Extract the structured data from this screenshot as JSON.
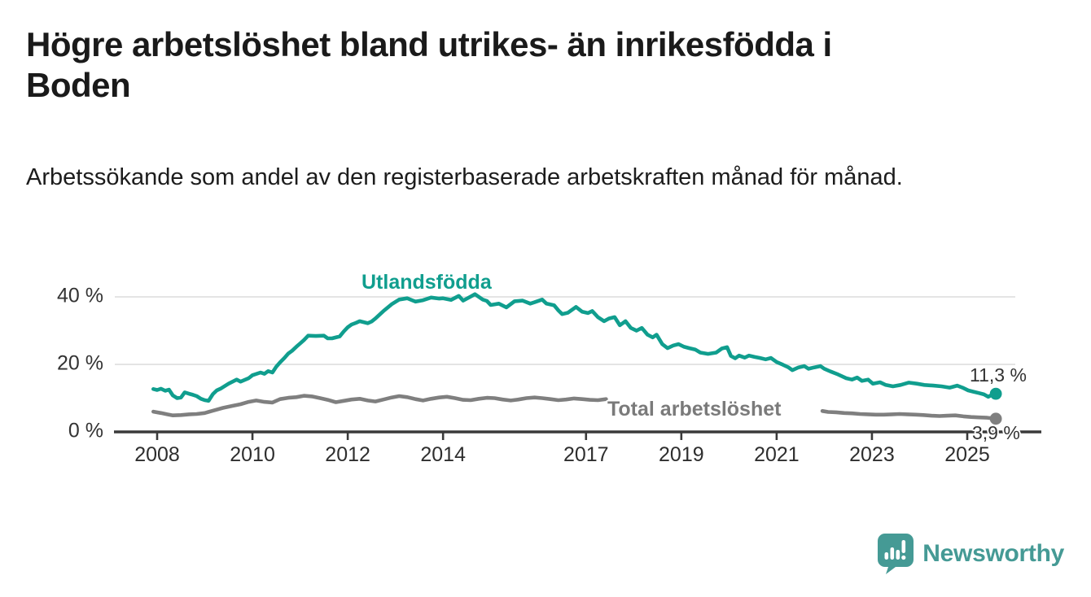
{
  "header": {
    "title_line1": "Högre arbetslöshet bland utrikes- än inrikesfödda i",
    "title_line2": "Boden",
    "subtitle": "Arbetssökande som andel av den registerbaserade arbetskraften månad för månad."
  },
  "footer": {
    "brand": "Newsworthy",
    "logo_icon": "speech-bubble-bar-chart",
    "logo_color": "#459a95"
  },
  "colors": {
    "foreign_series": "#109e8e",
    "total_series": "#7f7f7f",
    "axis": "#3a3a3a",
    "gridline": "#dcdcdc",
    "text": "#1a1a1a"
  },
  "chart_data": {
    "type": "line",
    "title": "Högre arbetslöshet bland utrikes- än inrikesfödda i Boden",
    "subtitle": "Arbetssökande som andel av den registerbaserade arbetskraften månad för månad.",
    "xlabel": "",
    "ylabel": "",
    "grid": "horizontal-only",
    "legend_position": "inline-labels-on-lines",
    "xlim": [
      2007.85,
      2026.1
    ],
    "ylim": [
      0,
      43
    ],
    "x_ticks": [
      {
        "value": 2008,
        "label": "2008"
      },
      {
        "value": 2010,
        "label": "2010"
      },
      {
        "value": 2012,
        "label": "2012"
      },
      {
        "value": 2014,
        "label": "2014"
      },
      {
        "value": 2017,
        "label": "2017"
      },
      {
        "value": 2019,
        "label": "2019"
      },
      {
        "value": 2021,
        "label": "2021"
      },
      {
        "value": 2023,
        "label": "2023"
      },
      {
        "value": 2025,
        "label": "2025"
      }
    ],
    "y_ticks": [
      {
        "value": 0,
        "label": "0 %"
      },
      {
        "value": 20,
        "label": "20 %"
      },
      {
        "value": 40,
        "label": "40 %"
      }
    ],
    "annotations": {
      "foreign_label": "Utlandsfödda",
      "total_label": "Total arbetslöshet",
      "foreign_end_value_label": "11,3 %",
      "total_end_value_label": "3,9 %"
    },
    "series": [
      {
        "id": "foreign",
        "name": "Utlandsfödda",
        "color": "#109e8e",
        "end_value": 11.3,
        "segments": [
          [
            [
              2007.92,
              12.7
            ],
            [
              2008.0,
              12.4
            ],
            [
              2008.08,
              12.8
            ],
            [
              2008.17,
              12.2
            ],
            [
              2008.25,
              12.5
            ],
            [
              2008.33,
              10.8
            ],
            [
              2008.42,
              10.0
            ],
            [
              2008.5,
              10.2
            ],
            [
              2008.58,
              11.7
            ],
            [
              2008.67,
              11.3
            ],
            [
              2008.75,
              11.0
            ],
            [
              2008.83,
              10.6
            ],
            [
              2008.92,
              9.8
            ],
            [
              2009.0,
              9.4
            ],
            [
              2009.08,
              9.2
            ],
            [
              2009.17,
              11.2
            ],
            [
              2009.25,
              12.3
            ],
            [
              2009.33,
              12.8
            ],
            [
              2009.5,
              14.3
            ],
            [
              2009.67,
              15.5
            ],
            [
              2009.75,
              14.9
            ],
            [
              2009.92,
              15.9
            ],
            [
              2010.0,
              16.8
            ],
            [
              2010.17,
              17.6
            ],
            [
              2010.25,
              17.2
            ],
            [
              2010.33,
              18.0
            ],
            [
              2010.42,
              17.6
            ],
            [
              2010.5,
              19.3
            ],
            [
              2010.58,
              20.6
            ],
            [
              2010.67,
              21.9
            ],
            [
              2010.75,
              23.2
            ],
            [
              2010.83,
              24.0
            ],
            [
              2010.92,
              25.2
            ],
            [
              2011.0,
              26.2
            ],
            [
              2011.08,
              27.2
            ],
            [
              2011.17,
              28.5
            ],
            [
              2011.33,
              28.4
            ],
            [
              2011.5,
              28.5
            ],
            [
              2011.58,
              27.7
            ],
            [
              2011.67,
              27.7
            ],
            [
              2011.83,
              28.3
            ],
            [
              2011.92,
              29.8
            ],
            [
              2012.0,
              31.0
            ],
            [
              2012.08,
              31.8
            ],
            [
              2012.17,
              32.3
            ],
            [
              2012.25,
              32.8
            ],
            [
              2012.42,
              32.2
            ],
            [
              2012.5,
              32.7
            ],
            [
              2012.58,
              33.6
            ],
            [
              2012.75,
              35.8
            ],
            [
              2012.92,
              37.8
            ],
            [
              2013.08,
              39.2
            ],
            [
              2013.25,
              39.6
            ],
            [
              2013.42,
              38.6
            ],
            [
              2013.58,
              39.0
            ],
            [
              2013.75,
              39.8
            ],
            [
              2013.92,
              39.5
            ],
            [
              2014.0,
              39.6
            ],
            [
              2014.17,
              39.1
            ],
            [
              2014.33,
              40.3
            ],
            [
              2014.42,
              38.9
            ],
            [
              2014.58,
              40.1
            ],
            [
              2014.67,
              40.8
            ],
            [
              2014.83,
              39.2
            ],
            [
              2014.92,
              38.8
            ],
            [
              2015.0,
              37.6
            ],
            [
              2015.17,
              38.0
            ],
            [
              2015.33,
              36.9
            ],
            [
              2015.5,
              38.7
            ],
            [
              2015.67,
              38.9
            ],
            [
              2015.83,
              38.0
            ],
            [
              2015.92,
              38.4
            ],
            [
              2016.08,
              39.2
            ],
            [
              2016.17,
              38.0
            ],
            [
              2016.33,
              37.5
            ],
            [
              2016.42,
              36.0
            ],
            [
              2016.5,
              34.9
            ],
            [
              2016.62,
              35.3
            ],
            [
              2016.79,
              37.0
            ],
            [
              2016.92,
              35.6
            ],
            [
              2017.04,
              35.2
            ],
            [
              2017.13,
              35.8
            ],
            [
              2017.25,
              34.0
            ],
            [
              2017.38,
              32.8
            ],
            [
              2017.48,
              33.6
            ],
            [
              2017.6,
              34.0
            ],
            [
              2017.71,
              31.6
            ],
            [
              2017.83,
              32.8
            ],
            [
              2017.94,
              30.8
            ],
            [
              2018.06,
              30.0
            ],
            [
              2018.17,
              30.8
            ],
            [
              2018.29,
              28.8
            ],
            [
              2018.4,
              28.0
            ],
            [
              2018.48,
              28.8
            ],
            [
              2018.6,
              26.0
            ],
            [
              2018.71,
              24.8
            ],
            [
              2018.83,
              25.6
            ],
            [
              2018.94,
              26.0
            ],
            [
              2019.06,
              25.2
            ],
            [
              2019.17,
              24.8
            ],
            [
              2019.29,
              24.4
            ],
            [
              2019.4,
              23.5
            ],
            [
              2019.56,
              23.1
            ],
            [
              2019.73,
              23.5
            ],
            [
              2019.85,
              24.7
            ],
            [
              2019.96,
              25.1
            ],
            [
              2020.04,
              22.5
            ],
            [
              2020.13,
              21.8
            ],
            [
              2020.21,
              22.6
            ],
            [
              2020.33,
              22.0
            ],
            [
              2020.42,
              22.6
            ],
            [
              2020.54,
              22.2
            ],
            [
              2020.65,
              21.9
            ],
            [
              2020.77,
              21.5
            ],
            [
              2020.88,
              21.9
            ],
            [
              2021.0,
              20.7
            ],
            [
              2021.13,
              19.9
            ],
            [
              2021.25,
              19.1
            ],
            [
              2021.33,
              18.3
            ],
            [
              2021.46,
              19.1
            ],
            [
              2021.58,
              19.5
            ],
            [
              2021.67,
              18.7
            ],
            [
              2021.79,
              19.1
            ],
            [
              2021.92,
              19.5
            ],
            [
              2022.0,
              18.7
            ],
            [
              2022.13,
              17.9
            ],
            [
              2022.29,
              17.0
            ],
            [
              2022.46,
              15.9
            ],
            [
              2022.58,
              15.5
            ],
            [
              2022.69,
              16.1
            ],
            [
              2022.79,
              15.1
            ],
            [
              2022.92,
              15.5
            ],
            [
              2023.02,
              14.3
            ],
            [
              2023.17,
              14.7
            ],
            [
              2023.29,
              13.9
            ],
            [
              2023.44,
              13.5
            ],
            [
              2023.6,
              13.9
            ],
            [
              2023.77,
              14.6
            ],
            [
              2023.94,
              14.3
            ],
            [
              2024.1,
              13.9
            ],
            [
              2024.29,
              13.7
            ],
            [
              2024.46,
              13.5
            ],
            [
              2024.63,
              13.1
            ],
            [
              2024.79,
              13.7
            ],
            [
              2024.9,
              13.1
            ],
            [
              2025.02,
              12.3
            ],
            [
              2025.13,
              11.9
            ],
            [
              2025.25,
              11.5
            ],
            [
              2025.35,
              11.1
            ],
            [
              2025.44,
              10.4
            ],
            [
              2025.52,
              11.0
            ],
            [
              2025.6,
              11.3
            ]
          ]
        ]
      },
      {
        "id": "total",
        "name": "Total arbetslöshet",
        "color": "#7f7f7f",
        "end_value": 3.9,
        "segments": [
          [
            [
              2007.92,
              6.0
            ],
            [
              2008.08,
              5.6
            ],
            [
              2008.21,
              5.2
            ],
            [
              2008.33,
              4.9
            ],
            [
              2008.5,
              5.0
            ],
            [
              2008.67,
              5.2
            ],
            [
              2008.83,
              5.3
            ],
            [
              2009.0,
              5.6
            ],
            [
              2009.17,
              6.3
            ],
            [
              2009.38,
              7.1
            ],
            [
              2009.58,
              7.7
            ],
            [
              2009.75,
              8.2
            ],
            [
              2009.92,
              8.9
            ],
            [
              2010.08,
              9.3
            ],
            [
              2010.25,
              8.9
            ],
            [
              2010.42,
              8.7
            ],
            [
              2010.58,
              9.7
            ],
            [
              2010.75,
              10.1
            ],
            [
              2010.92,
              10.3
            ],
            [
              2011.08,
              10.7
            ],
            [
              2011.25,
              10.5
            ],
            [
              2011.42,
              10.0
            ],
            [
              2011.58,
              9.5
            ],
            [
              2011.75,
              8.8
            ],
            [
              2011.92,
              9.2
            ],
            [
              2012.08,
              9.6
            ],
            [
              2012.25,
              9.8
            ],
            [
              2012.42,
              9.3
            ],
            [
              2012.58,
              9.0
            ],
            [
              2012.75,
              9.6
            ],
            [
              2012.92,
              10.2
            ],
            [
              2013.08,
              10.6
            ],
            [
              2013.25,
              10.3
            ],
            [
              2013.42,
              9.7
            ],
            [
              2013.58,
              9.3
            ],
            [
              2013.75,
              9.8
            ],
            [
              2013.92,
              10.2
            ],
            [
              2014.08,
              10.4
            ],
            [
              2014.25,
              10.0
            ],
            [
              2014.42,
              9.5
            ],
            [
              2014.58,
              9.4
            ],
            [
              2014.75,
              9.8
            ],
            [
              2014.92,
              10.1
            ],
            [
              2015.08,
              10.0
            ],
            [
              2015.25,
              9.6
            ],
            [
              2015.42,
              9.3
            ],
            [
              2015.58,
              9.6
            ],
            [
              2015.75,
              10.0
            ],
            [
              2015.92,
              10.2
            ],
            [
              2016.08,
              10.0
            ],
            [
              2016.25,
              9.7
            ],
            [
              2016.42,
              9.4
            ],
            [
              2016.58,
              9.6
            ],
            [
              2016.75,
              9.9
            ],
            [
              2016.92,
              9.7
            ],
            [
              2017.08,
              9.5
            ],
            [
              2017.25,
              9.4
            ],
            [
              2017.42,
              9.7
            ]
          ],
          [
            [
              2021.96,
              6.2
            ],
            [
              2022.08,
              5.9
            ],
            [
              2022.25,
              5.8
            ],
            [
              2022.42,
              5.6
            ],
            [
              2022.58,
              5.5
            ],
            [
              2022.75,
              5.3
            ],
            [
              2022.92,
              5.2
            ],
            [
              2023.08,
              5.1
            ],
            [
              2023.25,
              5.1
            ],
            [
              2023.42,
              5.2
            ],
            [
              2023.58,
              5.3
            ],
            [
              2023.75,
              5.2
            ],
            [
              2023.92,
              5.1
            ],
            [
              2024.08,
              5.0
            ],
            [
              2024.25,
              4.8
            ],
            [
              2024.42,
              4.7
            ],
            [
              2024.58,
              4.8
            ],
            [
              2024.75,
              4.9
            ],
            [
              2024.92,
              4.6
            ],
            [
              2025.08,
              4.4
            ],
            [
              2025.25,
              4.3
            ],
            [
              2025.42,
              4.2
            ],
            [
              2025.6,
              3.9
            ]
          ]
        ]
      }
    ]
  }
}
